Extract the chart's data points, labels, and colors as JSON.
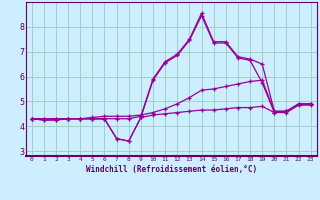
{
  "xlabel": "Windchill (Refroidissement éolien,°C)",
  "background_color": "#cceeff",
  "axis_color": "#660066",
  "grid_color": "#99ccbb",
  "line_color": "#990099",
  "xlim": [
    -0.5,
    23.5
  ],
  "ylim": [
    2.8,
    9.0
  ],
  "xticks": [
    0,
    1,
    2,
    3,
    4,
    5,
    6,
    7,
    8,
    9,
    10,
    11,
    12,
    13,
    14,
    15,
    16,
    17,
    18,
    19,
    20,
    21,
    22,
    23
  ],
  "yticks": [
    3,
    4,
    5,
    6,
    7,
    8
  ],
  "series": [
    [
      4.3,
      4.3,
      4.3,
      4.3,
      4.3,
      4.3,
      4.3,
      4.3,
      4.3,
      4.4,
      5.9,
      6.6,
      6.9,
      7.5,
      8.55,
      7.4,
      7.4,
      6.8,
      6.7,
      6.5,
      4.6,
      4.6,
      4.9,
      4.9
    ],
    [
      4.3,
      4.25,
      4.25,
      4.3,
      4.3,
      4.3,
      4.3,
      3.5,
      3.4,
      4.35,
      5.85,
      6.55,
      6.85,
      7.45,
      8.45,
      7.35,
      7.35,
      6.75,
      6.65,
      5.75,
      4.55,
      4.55,
      4.85,
      4.85
    ],
    [
      4.3,
      4.3,
      4.3,
      4.3,
      4.3,
      4.35,
      4.4,
      4.4,
      4.4,
      4.45,
      4.55,
      4.7,
      4.9,
      5.15,
      5.45,
      5.5,
      5.6,
      5.7,
      5.8,
      5.85,
      4.6,
      4.6,
      4.9,
      4.9
    ],
    [
      4.3,
      4.25,
      4.25,
      4.3,
      4.3,
      4.3,
      4.3,
      3.5,
      3.4,
      4.35,
      4.45,
      4.5,
      4.55,
      4.6,
      4.65,
      4.65,
      4.7,
      4.75,
      4.75,
      4.8,
      4.55,
      4.6,
      4.85,
      4.9
    ]
  ]
}
